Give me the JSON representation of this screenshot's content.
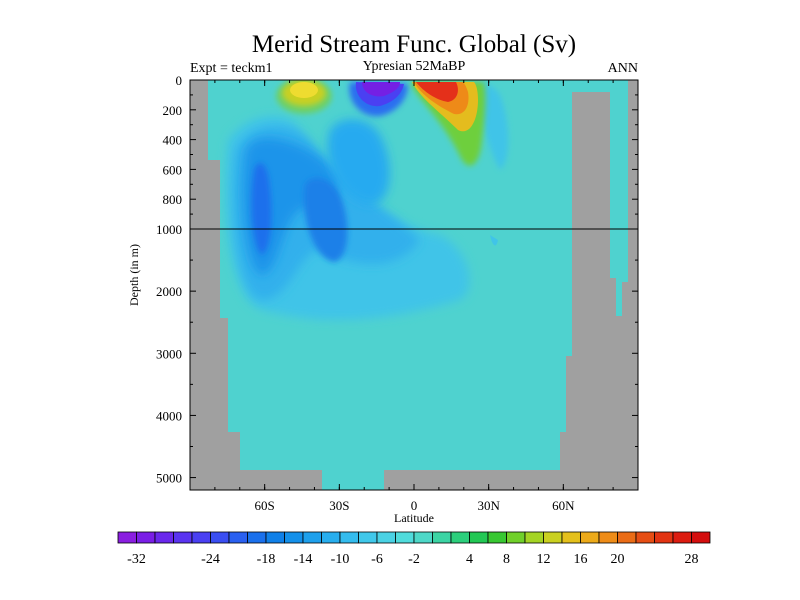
{
  "chart_data": {
    "type": "heatmap",
    "title": "Merid Stream Func. Global (Sv)",
    "subtitle_left": "Expt = teckm1",
    "subtitle_center": "Ypresian  52MaBP",
    "subtitle_right": "ANN",
    "xlabel": "Latitude",
    "ylabel": "Depth (in m)",
    "x_ticks": [
      {
        "value": -60,
        "label": "60S"
      },
      {
        "value": -30,
        "label": "30S"
      },
      {
        "value": 0,
        "label": "0"
      },
      {
        "value": 30,
        "label": "30N"
      },
      {
        "value": 60,
        "label": "60N"
      }
    ],
    "xlim": [
      -90,
      90
    ],
    "y_upper_ticks": [
      {
        "value": 0,
        "label": "0"
      },
      {
        "value": 200,
        "label": "200"
      },
      {
        "value": 400,
        "label": "400"
      },
      {
        "value": 600,
        "label": "600"
      },
      {
        "value": 800,
        "label": "800"
      },
      {
        "value": 1000,
        "label": "1000"
      }
    ],
    "y_lower_ticks": [
      {
        "value": 2000,
        "label": "2000"
      },
      {
        "value": 3000,
        "label": "3000"
      },
      {
        "value": 4000,
        "label": "4000"
      },
      {
        "value": 5000,
        "label": "5000"
      }
    ],
    "ylim": [
      0,
      5200
    ],
    "y_scale_break": 1000,
    "colorbar": {
      "levels": [
        -32,
        -30,
        -28,
        -26,
        -24,
        -22,
        -20,
        -18,
        -16,
        -14,
        -12,
        -10,
        -8,
        -6,
        -4,
        -2,
        0,
        2,
        4,
        6,
        8,
        10,
        12,
        14,
        16,
        18,
        20,
        22,
        24,
        26,
        28,
        30,
        32
      ],
      "tick_labels": [
        "-32",
        "-24",
        "-18",
        "-14",
        "-10",
        "-6",
        "-2",
        "4",
        "8",
        "12",
        "16",
        "20",
        "28"
      ],
      "colors": [
        "#8a1ee0",
        "#7a1ee6",
        "#6a28ec",
        "#5a34f0",
        "#4a40f2",
        "#3a4ef2",
        "#2a60f0",
        "#1a70ec",
        "#1080e8",
        "#1490ea",
        "#1ea0ec",
        "#28aeee",
        "#34bcee",
        "#40c8ea",
        "#4ad2e4",
        "#50dcdc",
        "#4ed8c8",
        "#3cd4a4",
        "#2ccf7c",
        "#22c854",
        "#38c832",
        "#70d02a",
        "#a4d424",
        "#cad020",
        "#e4c01c",
        "#ecaa1a",
        "#ee8c18",
        "#ea6c16",
        "#e64e14",
        "#e23412",
        "#dc1c10",
        "#d40e0e"
      ]
    },
    "background_value_color": "#4fd2cf",
    "land_color": "#a0a0a0",
    "features": [
      {
        "name": "NH surface cell",
        "lat": 12,
        "depth": 50,
        "value": 28
      },
      {
        "name": "equatorial southern cell",
        "lat": -12,
        "depth": 50,
        "value": -28
      },
      {
        "name": "subtropical southern cell",
        "lat": -35,
        "depth": 50,
        "value": 10
      },
      {
        "name": "southern deep cell",
        "lat": -60,
        "depth": 800,
        "value": -12
      }
    ]
  }
}
